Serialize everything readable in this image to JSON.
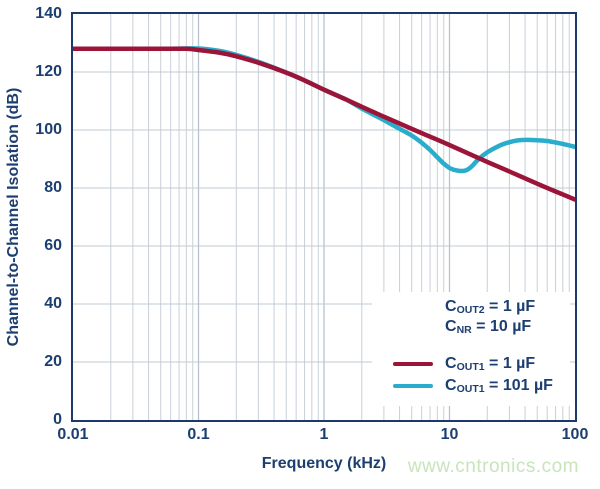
{
  "watermark": {
    "text": "www.cntronics.com",
    "color": "#c8e4bb"
  },
  "colors": {
    "axis_navy": "#1b3a6b",
    "text_navy": "#1c3e70",
    "grid_minor": "#c9d0d8",
    "grid_major": "#b7c2ce",
    "grid_horizontal": "#c2cbd3",
    "series_red": "#9b1538",
    "series_cyan": "#2aadcd"
  },
  "chart_data": {
    "type": "line",
    "title": "",
    "xlabel": "Frequency (kHz)",
    "ylabel": "Channel-to-Channel Isolation (dB)",
    "x_scale": "log",
    "xlim": [
      0.01,
      100
    ],
    "ylim": [
      0,
      140
    ],
    "grid": true,
    "x_ticks": [
      {
        "value": 0.01,
        "label": "0.01"
      },
      {
        "value": 0.1,
        "label": "0.1"
      },
      {
        "value": 1,
        "label": "1"
      },
      {
        "value": 10,
        "label": "10"
      },
      {
        "value": 100,
        "label": "100"
      }
    ],
    "y_ticks": [
      {
        "value": 140,
        "label": "140"
      },
      {
        "value": 120,
        "label": "120"
      },
      {
        "value": 100,
        "label": "100"
      },
      {
        "value": 80,
        "label": "80"
      },
      {
        "value": 60,
        "label": "60"
      },
      {
        "value": 40,
        "label": "40"
      },
      {
        "value": 20,
        "label": "20"
      },
      {
        "value": 0,
        "label": "0"
      }
    ],
    "legend_position": "bottom-right",
    "legend_text_lines": [
      {
        "sym": "C",
        "sub": "OUT2",
        "rest": " = 1 µF"
      },
      {
        "sym": "C",
        "sub": "NR",
        "rest": " = 10 µF"
      }
    ],
    "series": [
      {
        "name": "COUT1 = 1 uF",
        "label_parts": {
          "sym": "C",
          "sub": "OUT1",
          "rest": " = 1 µF"
        },
        "color": "#9b1538",
        "x": [
          0.01,
          0.02,
          0.05,
          0.08,
          0.1,
          0.15,
          0.2,
          0.3,
          0.5,
          0.7,
          1,
          1.5,
          2,
          3,
          5,
          7,
          10,
          15,
          20,
          30,
          50,
          70,
          100
        ],
        "y": [
          128,
          128,
          128,
          128,
          127.6,
          126.6,
          125.4,
          123.2,
          119.8,
          117.1,
          113.9,
          110.5,
          108,
          104.6,
          100.4,
          97.7,
          94.8,
          91.4,
          89,
          85.7,
          81.5,
          78.8,
          76
        ]
      },
      {
        "name": "COUT1 = 101 uF",
        "label_parts": {
          "sym": "C",
          "sub": "OUT1",
          "rest": " = 101 µF"
        },
        "color": "#2aadcd",
        "x": [
          0.01,
          0.05,
          0.1,
          0.15,
          0.2,
          0.3,
          0.5,
          0.7,
          1,
          1.5,
          2,
          3,
          4,
          5,
          6,
          7,
          8,
          9,
          10,
          11,
          12,
          13,
          14,
          15,
          17,
          20,
          25,
          30,
          35,
          40,
          50,
          60,
          70,
          80,
          100
        ],
        "y": [
          128,
          128,
          128.1,
          127.2,
          125.9,
          123.5,
          119.8,
          117.1,
          113.9,
          110.5,
          107.4,
          103.4,
          100.4,
          98.1,
          95.6,
          93.1,
          90.6,
          88.4,
          86.9,
          86.2,
          85.9,
          85.9,
          86.4,
          87.4,
          89.9,
          92.3,
          94.6,
          95.8,
          96.4,
          96.6,
          96.5,
          96.2,
          95.7,
          95.2,
          94.2
        ]
      }
    ]
  }
}
